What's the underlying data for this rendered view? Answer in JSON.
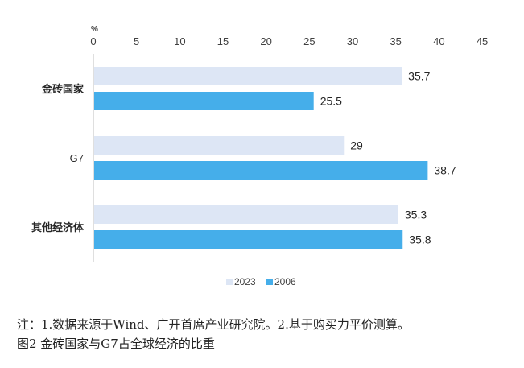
{
  "chart_data": {
    "type": "bar",
    "orientation": "horizontal",
    "unit_label": "%",
    "xlim": [
      0,
      45
    ],
    "xticks": [
      0,
      5,
      10,
      15,
      20,
      25,
      30,
      35,
      40,
      45
    ],
    "categories": [
      "金砖国家",
      "G7",
      "其他经济体"
    ],
    "series": [
      {
        "name": "2023",
        "color": "#dde6f5",
        "values": [
          35.7,
          29,
          35.3
        ],
        "labels": [
          "35.7",
          "29",
          "35.3"
        ]
      },
      {
        "name": "2006",
        "color": "#45aeea",
        "values": [
          25.5,
          38.7,
          35.8
        ],
        "labels": [
          "25.5",
          "38.7",
          "35.8"
        ]
      }
    ],
    "grid": false,
    "legend_position": "bottom"
  },
  "notes": {
    "source": "注：1.数据来源于Wind、广开首席产业研究院。2.基于购买力平价测算。",
    "caption": "图2   金砖国家与G7占全球经济的比重"
  }
}
